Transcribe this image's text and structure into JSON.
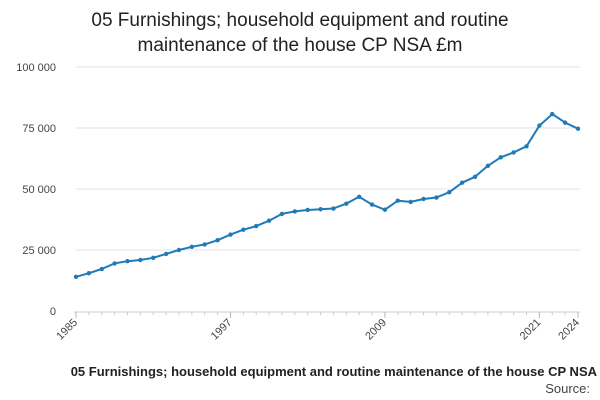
{
  "chart_data": {
    "type": "line",
    "title_lines": [
      "05 Furnishings; household equipment and routine",
      "maintenance of the house CP NSA £m"
    ],
    "caption": "05 Furnishings; household equipment and routine maintenance of the house CP NSA",
    "source_label": "Source:",
    "xlabel": "",
    "ylabel": "",
    "ylim": [
      0,
      100000
    ],
    "xlim": [
      1985,
      2024
    ],
    "y_ticks": [
      0,
      25000,
      50000,
      75000,
      100000
    ],
    "y_tick_labels": [
      "0",
      "25 000",
      "50 000",
      "75 000",
      "100 000"
    ],
    "x_ticks": [
      1985,
      1997,
      2009,
      2021,
      2024
    ],
    "x_tick_labels": [
      "1985",
      "1997",
      "2009",
      "2021",
      "2024"
    ],
    "grid": true,
    "series": [
      {
        "color": "#1f7ab8",
        "x": [
          1985,
          1986,
          1987,
          1988,
          1989,
          1990,
          1991,
          1992,
          1993,
          1994,
          1995,
          1996,
          1997,
          1998,
          1999,
          2000,
          2001,
          2002,
          2003,
          2004,
          2005,
          2006,
          2007,
          2008,
          2009,
          2010,
          2011,
          2012,
          2013,
          2014,
          2015,
          2016,
          2017,
          2018,
          2019,
          2020,
          2021,
          2022,
          2023,
          2024
        ],
        "values": [
          14000,
          15500,
          17200,
          19500,
          20400,
          20900,
          21800,
          23400,
          25000,
          26300,
          27300,
          29000,
          31300,
          33300,
          34800,
          37000,
          39800,
          40800,
          41400,
          41700,
          42000,
          44000,
          46800,
          43600,
          41500,
          45200,
          44700,
          45900,
          46500,
          48700,
          52600,
          55000,
          59500,
          63000,
          65000,
          67500,
          76000,
          80700,
          77200,
          74700
        ]
      }
    ]
  }
}
